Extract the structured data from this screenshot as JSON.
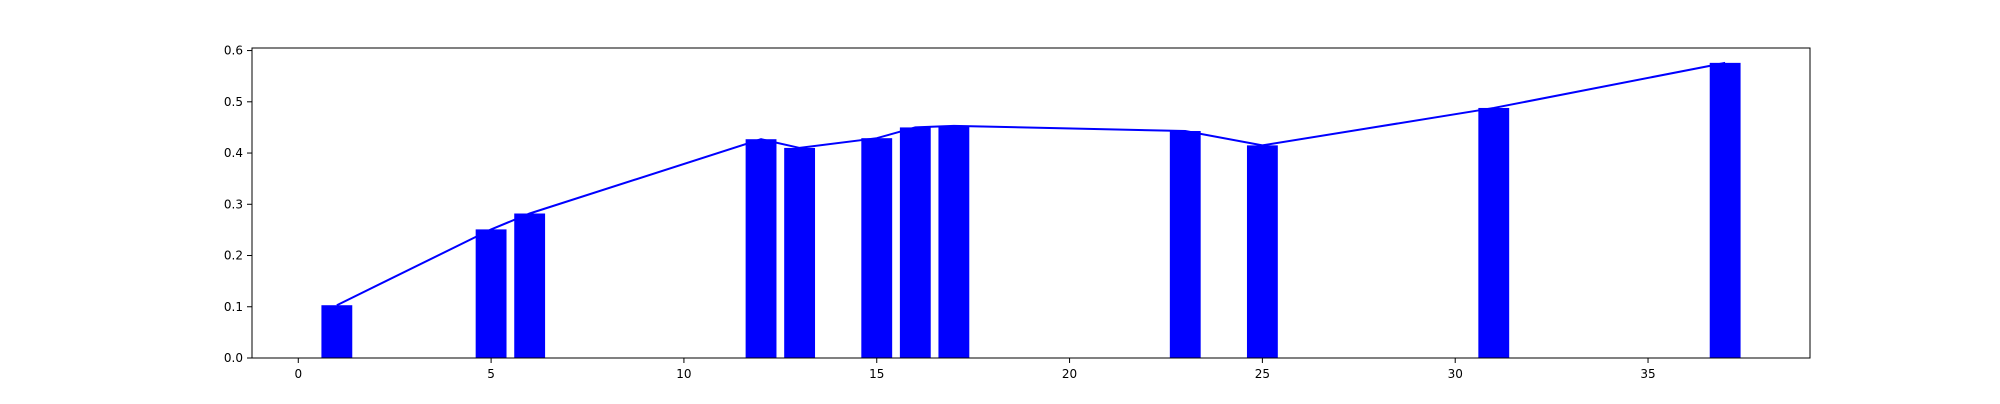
{
  "chart_data": {
    "type": "bar",
    "title": "",
    "xlabel": "",
    "ylabel": "",
    "xlim": [
      -1.2,
      39.2
    ],
    "ylim": [
      0,
      0.605
    ],
    "grid": false,
    "colors": {
      "bar": "#0000ff",
      "line": "#0000ff",
      "axes": "#000000",
      "background": "#ffffff"
    },
    "x_ticks": [
      0,
      5,
      10,
      15,
      20,
      25,
      30,
      35
    ],
    "x_tick_labels": [
      "0",
      "5",
      "10",
      "15",
      "20",
      "25",
      "30",
      "35"
    ],
    "y_ticks": [
      0.0,
      0.1,
      0.2,
      0.3,
      0.4,
      0.5,
      0.6
    ],
    "y_tick_labels": [
      "0.0",
      "0.1",
      "0.2",
      "0.3",
      "0.4",
      "0.5",
      "0.6"
    ],
    "bar_width": 0.8,
    "x": [
      1,
      5,
      6,
      12,
      13,
      15,
      16,
      17,
      23,
      25,
      31,
      37
    ],
    "values": [
      0.103,
      0.251,
      0.282,
      0.427,
      0.41,
      0.429,
      0.45,
      0.453,
      0.443,
      0.415,
      0.488,
      0.576
    ],
    "line": {
      "x": [
        1,
        5,
        6,
        12,
        13,
        15,
        16,
        17,
        23,
        25,
        31,
        37
      ],
      "y": [
        0.103,
        0.251,
        0.282,
        0.427,
        0.41,
        0.429,
        0.45,
        0.453,
        0.443,
        0.415,
        0.488,
        0.576
      ]
    }
  }
}
